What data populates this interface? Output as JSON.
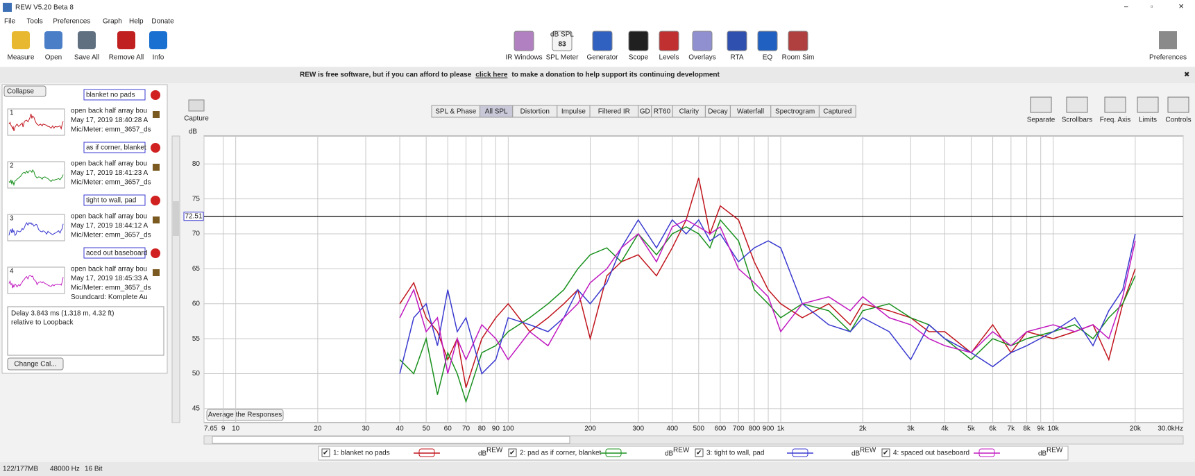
{
  "window": {
    "title": "REW V5.20 Beta 8"
  },
  "menu": [
    "File",
    "Tools",
    "Preferences",
    "Graph",
    "Help",
    "Donate"
  ],
  "toolbar_left": [
    "Measure",
    "Open",
    "Save All",
    "Remove All",
    "Info"
  ],
  "toolbar_center": [
    "IR Windows",
    "SPL Meter",
    "Generator",
    "Scope",
    "Levels",
    "Overlays",
    "RTA",
    "EQ",
    "Room Sim"
  ],
  "spl_icon": {
    "unit": "dB SPL",
    "reading": "83"
  },
  "toolbar_right": [
    "Preferences"
  ],
  "banner": {
    "before": "REW is free software, but if you can afford to please",
    "link": "click here",
    "after": "to make a donation to help support its continuing development"
  },
  "left_panel": {
    "collapse": "Collapse",
    "measurements": [
      {
        "num": "1",
        "name": "blanket no pads",
        "lines": [
          "open back half array bou",
          "May 17, 2019 18:40:28 A",
          "Mic/Meter: emm_3657_ds"
        ]
      },
      {
        "num": "2",
        "name": "as if corner, blanket",
        "lines": [
          "open back half array bou",
          "May 17, 2019 18:41:23 A",
          "Mic/Meter: emm_3657_ds"
        ]
      },
      {
        "num": "3",
        "name": "tight to wall, pad",
        "lines": [
          "open back half array bou",
          "May 17, 2019 18:44:12 A",
          "Mic/Meter: emm_3657_ds"
        ]
      },
      {
        "num": "4",
        "name": "aced out baseboard",
        "lines": [
          "open back half array bou",
          "May 17, 2019 18:45:33 A",
          "Mic/Meter: emm_3657_ds",
          "Soundcard: Komplete Au"
        ]
      }
    ],
    "info": [
      "Delay 3.843 ms (1.318 m, 4.32 ft)",
      "relative to Loopback"
    ],
    "change_cal": "Change Cal..."
  },
  "graph_toolbar": {
    "capture": "Capture",
    "tabs": [
      "SPL & Phase",
      "All SPL",
      "Distortion",
      "Impulse",
      "Filtered IR",
      "GD",
      "RT60",
      "Clarity",
      "Decay",
      "Waterfall",
      "Spectrogram",
      "Captured"
    ],
    "selected_tab": "All SPL",
    "right": [
      "Separate",
      "Scrollbars",
      "Freq. Axis",
      "Limits",
      "Controls"
    ]
  },
  "average_button": "Average the Responses",
  "legend_unit": "dB",
  "legend_sup": "REW",
  "chart_data": {
    "type": "line",
    "y_label": "dB",
    "log_x": true,
    "grid": true,
    "xlim": [
      7.65,
      30000
    ],
    "ylim": [
      43,
      84
    ],
    "yticks": [
      45,
      50,
      55,
      60,
      65,
      70,
      75,
      80
    ],
    "xticks": [
      {
        "value": 7.65,
        "label": "7.65"
      },
      9,
      10,
      20,
      30,
      40,
      50,
      60,
      70,
      80,
      90,
      100,
      200,
      300,
      400,
      500,
      600,
      700,
      800,
      900,
      {
        "value": 1000,
        "label": "1k"
      },
      {
        "value": 2000,
        "label": "2k"
      },
      {
        "value": 3000,
        "label": "3k"
      },
      {
        "value": 4000,
        "label": "4k"
      },
      {
        "value": 5000,
        "label": "5k"
      },
      {
        "value": 6000,
        "label": "6k"
      },
      {
        "value": 7000,
        "label": "7k"
      },
      {
        "value": 8000,
        "label": "8k"
      },
      {
        "value": 9000,
        "label": "9k"
      },
      {
        "value": 10000,
        "label": "10k"
      },
      {
        "value": 20000,
        "label": "20k"
      },
      {
        "value": 30000,
        "label": "30.0kHz"
      }
    ],
    "cursor_y": 72.51,
    "x": [
      40,
      45,
      50,
      55,
      60,
      65,
      70,
      80,
      90,
      100,
      120,
      140,
      160,
      180,
      200,
      230,
      260,
      300,
      350,
      400,
      450,
      500,
      550,
      600,
      700,
      800,
      900,
      1000,
      1200,
      1500,
      1800,
      2000,
      2500,
      3000,
      3500,
      4000,
      5000,
      6000,
      7000,
      8000,
      10000,
      12000,
      14000,
      16000,
      18000,
      20000
    ],
    "series": [
      {
        "name": "1: blanket no pads",
        "color": "#c0141c",
        "values": [
          60,
          63,
          58,
          56,
          52,
          55,
          48,
          55,
          58,
          60,
          56,
          58,
          60,
          62,
          55,
          64,
          66,
          67,
          64,
          68,
          72,
          78,
          70,
          74,
          72,
          66,
          62,
          60,
          58,
          60,
          57,
          60,
          59,
          58,
          56,
          56,
          53,
          57,
          53,
          56,
          55,
          56,
          57,
          52,
          60,
          65
        ]
      },
      {
        "name": "2: pad as if corner, blanket",
        "color": "#18901c",
        "values": [
          52,
          50,
          55,
          47,
          53,
          50,
          46,
          53,
          54,
          56,
          58,
          60,
          62,
          65,
          67,
          68,
          66,
          70,
          67,
          70,
          71,
          70,
          68,
          72,
          69,
          62,
          60,
          58,
          60,
          59,
          56,
          59,
          60,
          58,
          57,
          55,
          52,
          55,
          54,
          55,
          56,
          57,
          55,
          58,
          60,
          64
        ]
      },
      {
        "name": "3: tight to wall, pad",
        "color": "#3a3ad0",
        "values": [
          50,
          58,
          60,
          54,
          62,
          56,
          58,
          50,
          52,
          58,
          57,
          56,
          58,
          62,
          60,
          63,
          68,
          72,
          68,
          72,
          70,
          72,
          69,
          70,
          66,
          68,
          69,
          68,
          60,
          57,
          56,
          58,
          56,
          52,
          57,
          55,
          53,
          51,
          53,
          54,
          56,
          58,
          54,
          59,
          62,
          70
        ]
      },
      {
        "name": "4: spaced out baseboard",
        "color": "#c018c0",
        "values": [
          58,
          62,
          56,
          58,
          50,
          55,
          52,
          57,
          55,
          52,
          56,
          54,
          58,
          60,
          63,
          65,
          68,
          70,
          66,
          71,
          72,
          71,
          70,
          71,
          65,
          63,
          61,
          56,
          60,
          61,
          59,
          61,
          58,
          57,
          55,
          54,
          53,
          56,
          54,
          56,
          57,
          56,
          57,
          55,
          61,
          69
        ]
      }
    ]
  },
  "status": [
    "122/177MB",
    "48000 Hz",
    "16 Bit"
  ]
}
